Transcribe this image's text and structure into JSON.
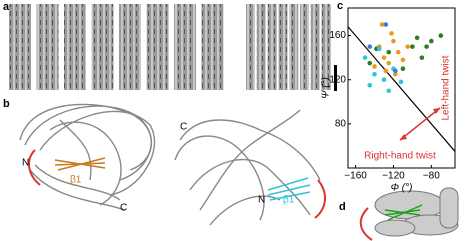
{
  "panel_labels": [
    "a",
    "b",
    "c",
    "d"
  ],
  "structure_labels": {
    "left": {
      "n": "N",
      "c": "C",
      "beta": "β1"
    },
    "right": {
      "n": "N",
      "c": "C",
      "beta": "β1"
    }
  },
  "chart_data": {
    "type": "scatter",
    "xlabel": "Φ (°)",
    "ylabel": "Ψ (°)",
    "xlim": [
      -168,
      -55
    ],
    "ylim": [
      40,
      185
    ],
    "xticks": [
      {
        "value": -160,
        "label": "−160"
      },
      {
        "value": -120,
        "label": "−120"
      },
      {
        "value": -80,
        "label": "−80"
      }
    ],
    "yticks": [
      80,
      120,
      160
    ],
    "annotations": [
      "Left-hand twist",
      "Right-hand twist"
    ],
    "series": [
      {
        "color": "#f0961e",
        "x": [
          -135,
          -130,
          -125,
          -120,
          -128,
          -115,
          -140,
          -110,
          -122,
          -118,
          -132,
          -105
        ],
        "y": [
          150,
          140,
          135,
          155,
          128,
          145,
          132,
          138,
          162,
          125,
          170,
          150
        ]
      },
      {
        "color": "#2e7d1e",
        "x": [
          -145,
          -100,
          -90,
          -80,
          -110,
          -95,
          -125,
          -85,
          -70,
          -138
        ],
        "y": [
          135,
          150,
          140,
          155,
          130,
          158,
          145,
          150,
          160,
          148
        ]
      },
      {
        "color": "#2cc6d6",
        "x": [
          -150,
          -140,
          -130,
          -120,
          -145,
          -135,
          -112,
          -125
        ],
        "y": [
          140,
          125,
          120,
          130,
          115,
          148,
          118,
          110
        ]
      },
      {
        "color": "#3a7bd5",
        "x": [
          -145,
          -118,
          -128
        ],
        "y": [
          150,
          128,
          170
        ]
      }
    ]
  }
}
